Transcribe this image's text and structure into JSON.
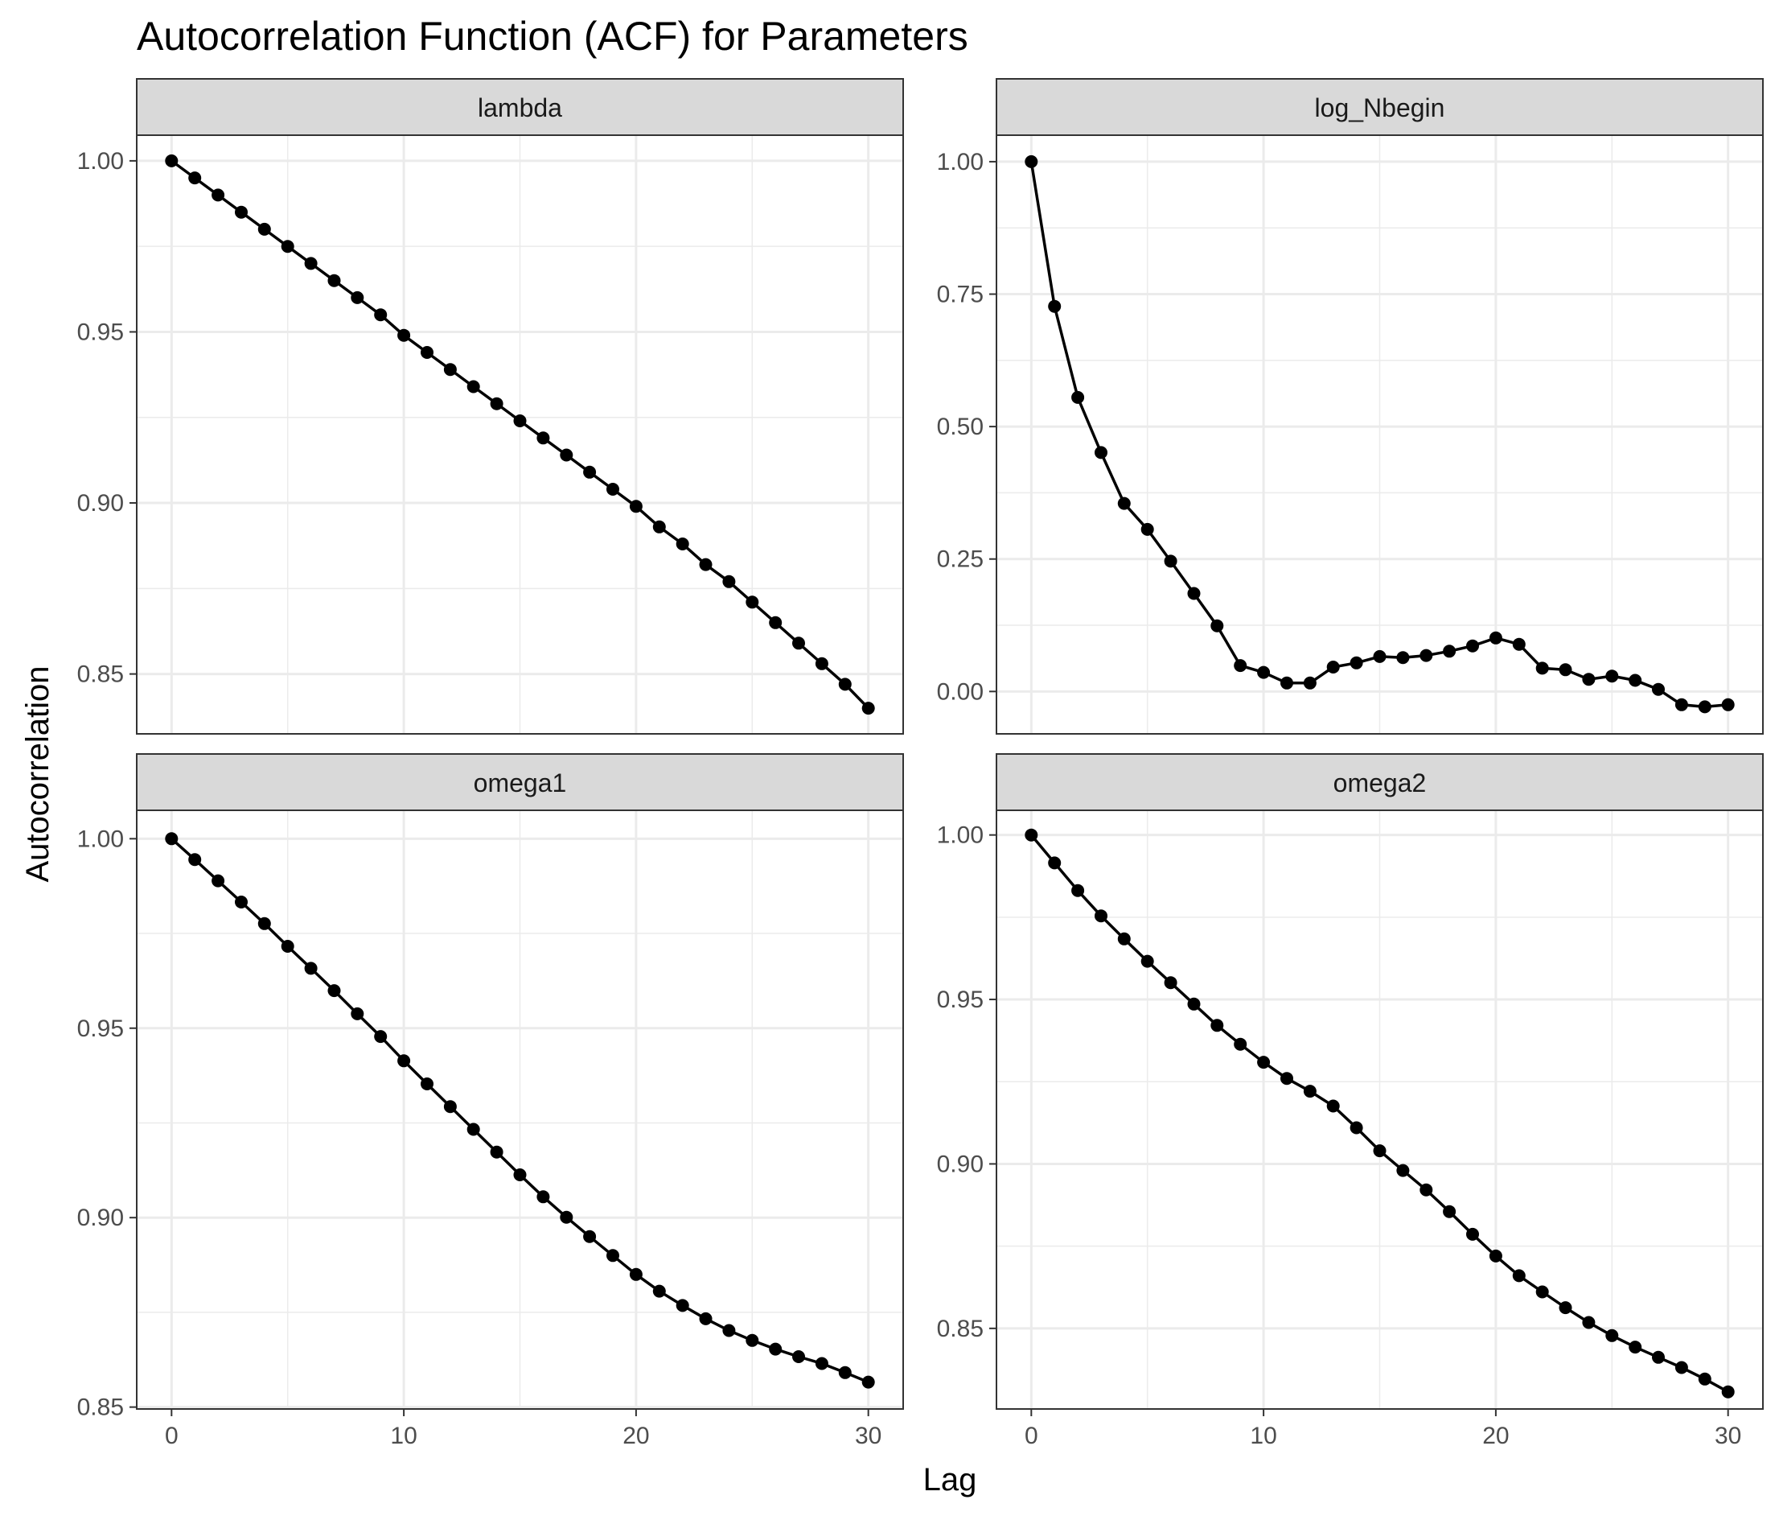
{
  "chart_data": {
    "type": "line",
    "title": "Autocorrelation Function (ACF) for Parameters",
    "xlabel": "Lag",
    "ylabel": "Autocorrelation",
    "x": [
      0,
      1,
      2,
      3,
      4,
      5,
      6,
      7,
      8,
      9,
      10,
      11,
      12,
      13,
      14,
      15,
      16,
      17,
      18,
      19,
      20,
      21,
      22,
      23,
      24,
      25,
      26,
      27,
      28,
      29,
      30
    ],
    "xlim": [
      -1.5,
      31.5
    ],
    "x_ticks": [
      0,
      10,
      20,
      30
    ],
    "grid": true,
    "colors": {
      "line": "#000000",
      "point": "#000000",
      "strip": "#d9d9d9",
      "grid": "#ebebeb"
    },
    "panels": [
      {
        "name": "lambda",
        "ylim": [
          0.8325,
          1.0075
        ],
        "y_ticks": [
          0.85,
          0.9,
          0.95,
          1.0
        ],
        "y_tick_labels": [
          "0.85",
          "0.90",
          "0.95",
          "1.00"
        ],
        "values": [
          1.0,
          0.995,
          0.99,
          0.985,
          0.98,
          0.975,
          0.97,
          0.965,
          0.96,
          0.955,
          0.949,
          0.944,
          0.939,
          0.934,
          0.929,
          0.924,
          0.919,
          0.914,
          0.909,
          0.904,
          0.899,
          0.893,
          0.888,
          0.882,
          0.877,
          0.871,
          0.865,
          0.859,
          0.853,
          0.847,
          0.84
        ]
      },
      {
        "name": "log_Nbegin",
        "ylim": [
          -0.08,
          1.05
        ],
        "y_ticks": [
          0.0,
          0.25,
          0.5,
          0.75,
          1.0
        ],
        "y_tick_labels": [
          "0.00",
          "0.25",
          "0.50",
          "0.75",
          "1.00"
        ],
        "values": [
          1.0,
          0.727,
          0.555,
          0.451,
          0.355,
          0.306,
          0.246,
          0.185,
          0.124,
          0.049,
          0.036,
          0.016,
          0.016,
          0.046,
          0.054,
          0.066,
          0.064,
          0.068,
          0.076,
          0.086,
          0.101,
          0.089,
          0.044,
          0.041,
          0.023,
          0.029,
          0.021,
          0.004,
          -0.025,
          -0.029,
          -0.025
        ]
      },
      {
        "name": "omega1",
        "ylim": [
          0.8495,
          1.0075
        ],
        "y_ticks": [
          0.85,
          0.9,
          0.95,
          1.0
        ],
        "y_tick_labels": [
          "0.85",
          "0.90",
          "0.95",
          "1.00"
        ],
        "values": [
          1.0,
          0.9945,
          0.9889,
          0.9833,
          0.9776,
          0.9716,
          0.9658,
          0.9599,
          0.9538,
          0.9478,
          0.9414,
          0.9353,
          0.9293,
          0.9233,
          0.9173,
          0.9113,
          0.9055,
          0.9001,
          0.895,
          0.89,
          0.885,
          0.8806,
          0.8768,
          0.8733,
          0.8702,
          0.8676,
          0.8653,
          0.8633,
          0.8615,
          0.8591,
          0.8566
        ]
      },
      {
        "name": "omega2",
        "ylim": [
          0.8255,
          1.0075
        ],
        "y_ticks": [
          0.85,
          0.9,
          0.95,
          1.0
        ],
        "y_tick_labels": [
          "0.85",
          "0.90",
          "0.95",
          "1.00"
        ],
        "values": [
          1.0,
          0.9915,
          0.9831,
          0.9754,
          0.9684,
          0.9616,
          0.9551,
          0.9486,
          0.9421,
          0.9364,
          0.9309,
          0.926,
          0.9221,
          0.9176,
          0.911,
          0.904,
          0.898,
          0.8921,
          0.8855,
          0.8786,
          0.872,
          0.866,
          0.8611,
          0.8563,
          0.8518,
          0.8478,
          0.8443,
          0.8412,
          0.8381,
          0.8346,
          0.8307
        ]
      }
    ]
  }
}
